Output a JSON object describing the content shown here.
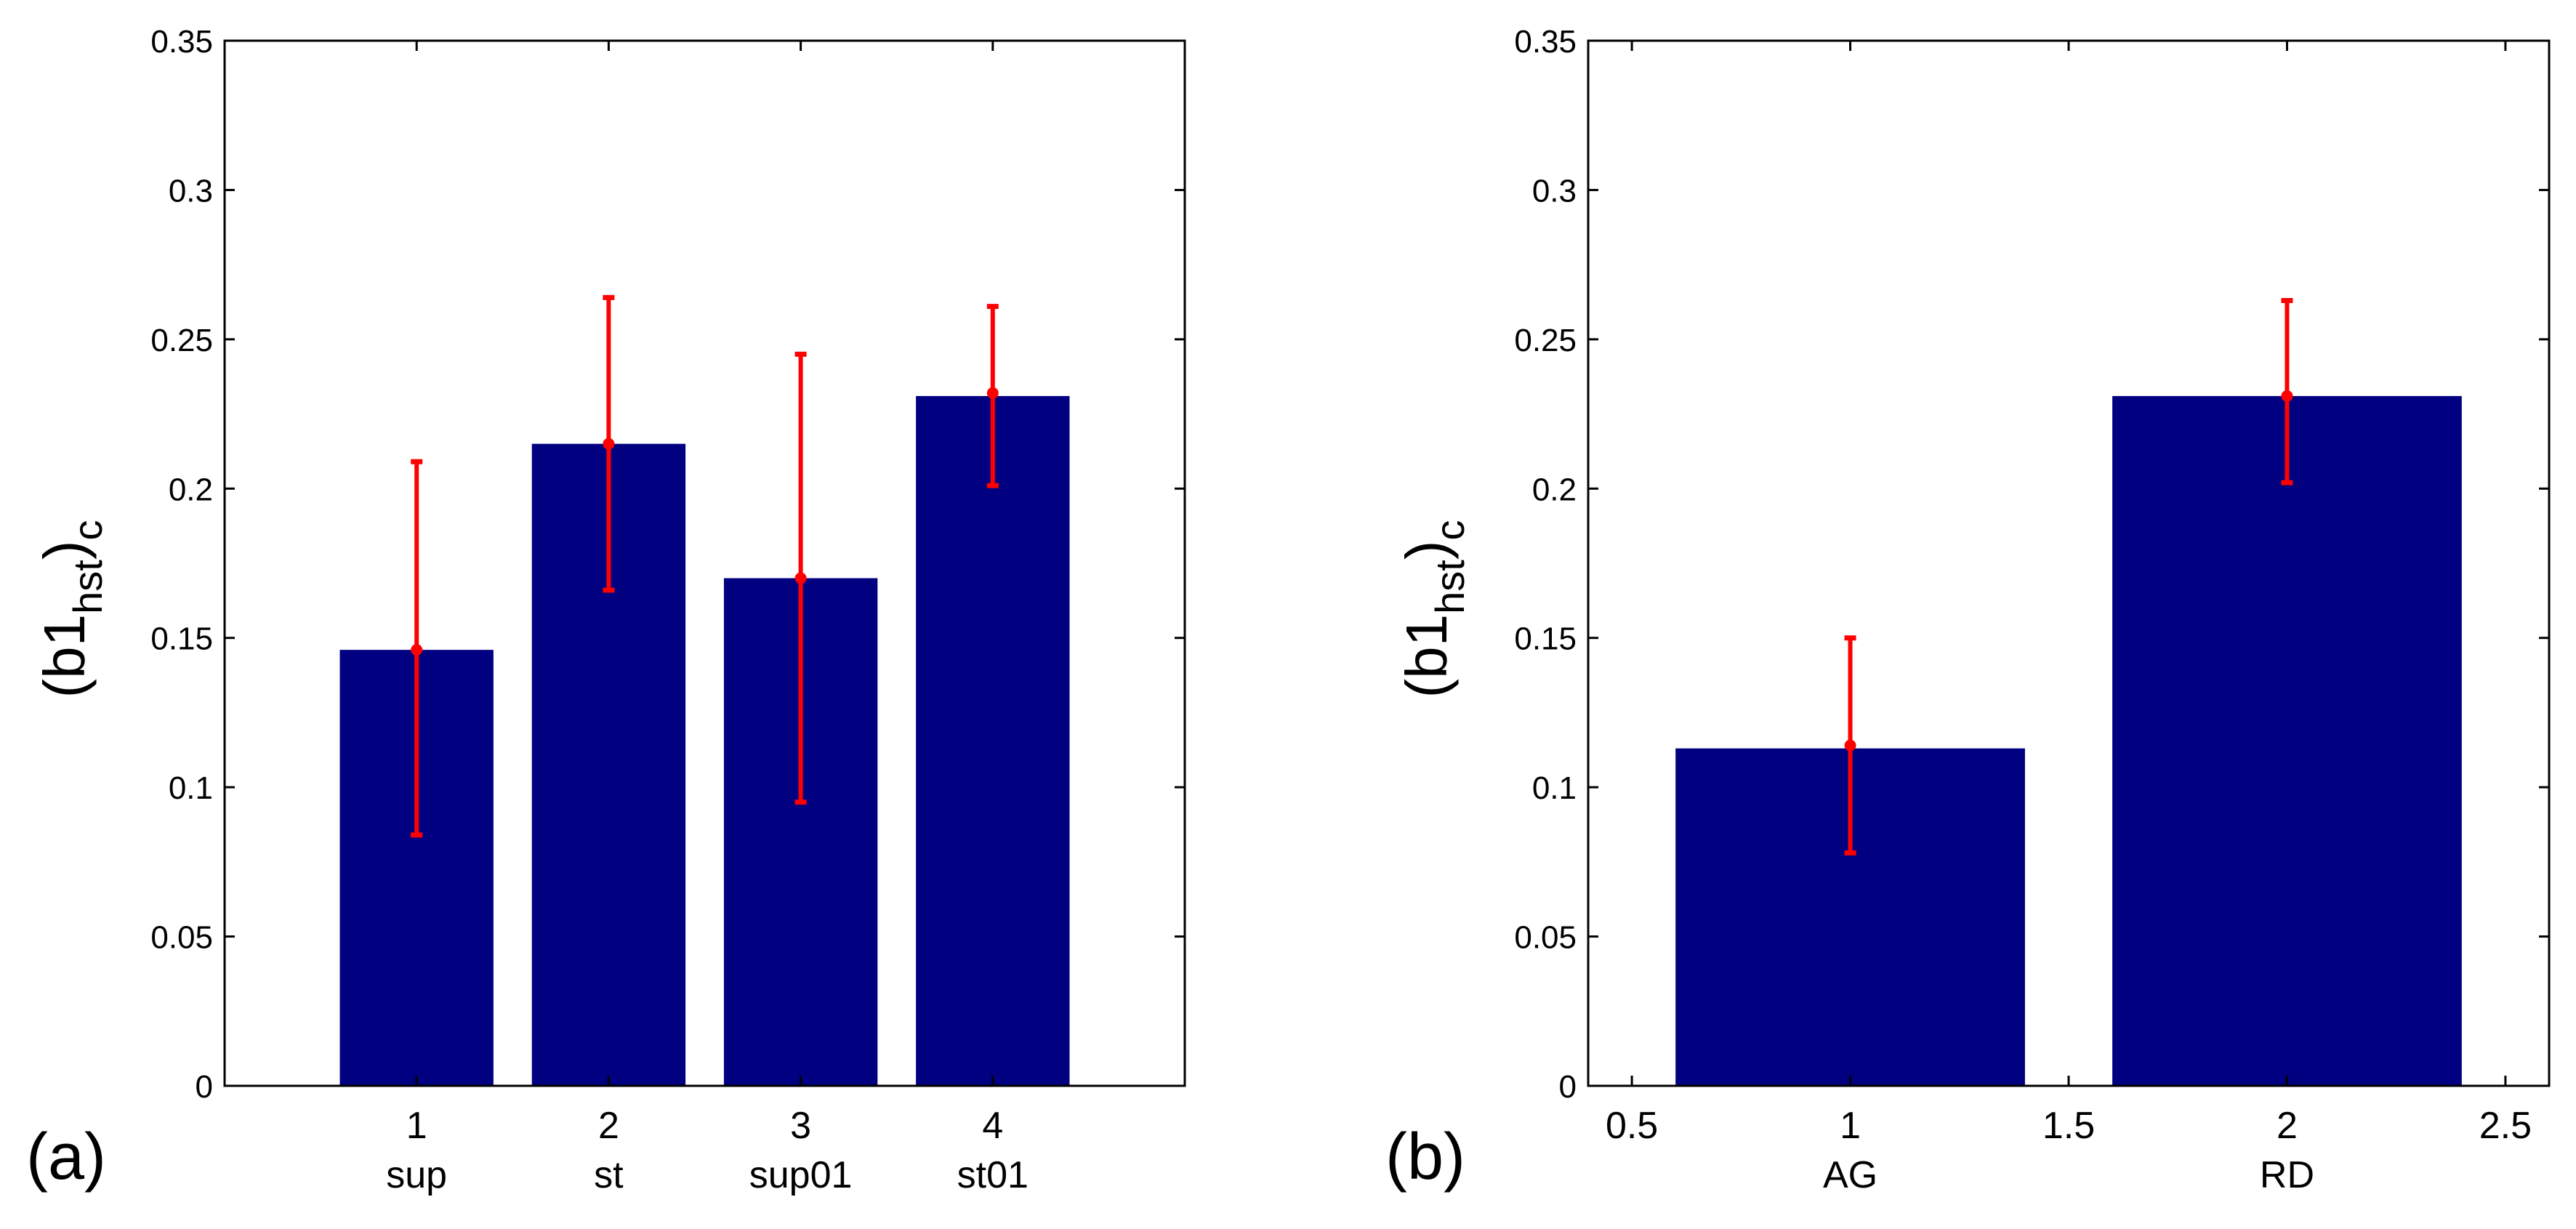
{
  "chart_data": [
    {
      "type": "bar",
      "panel_label": "(a)",
      "ylabel": {
        "main": "(b1",
        "sub": "hst",
        "close": ")",
        "sub2": "c"
      },
      "ylim": [
        0,
        0.35
      ],
      "yticks": [
        "0",
        "0.05",
        "0.1",
        "0.15",
        "0.2",
        "0.25",
        "0.3",
        "0.35"
      ],
      "xlim": [
        0,
        5
      ],
      "categories": [
        {
          "x": 1,
          "tick": "1",
          "name": "sup"
        },
        {
          "x": 2,
          "tick": "2",
          "name": "st"
        },
        {
          "x": 3,
          "tick": "3",
          "name": "sup01"
        },
        {
          "x": 4,
          "tick": "4",
          "name": "st01"
        }
      ],
      "values": [
        0.146,
        0.215,
        0.17,
        0.231
      ],
      "error_center": [
        0.146,
        0.215,
        0.17,
        0.232
      ],
      "error_low": [
        0.084,
        0.166,
        0.095,
        0.201
      ],
      "error_high": [
        0.209,
        0.264,
        0.245,
        0.261
      ],
      "bar_width": 0.8,
      "bar_color": "#000080",
      "error_color": "#ff0000"
    },
    {
      "type": "bar",
      "panel_label": "(b)",
      "ylabel": {
        "main": "(b1",
        "sub": "hst",
        "close": ")",
        "sub2": "c"
      },
      "ylim": [
        0,
        0.35
      ],
      "yticks": [
        "0",
        "0.05",
        "0.1",
        "0.15",
        "0.2",
        "0.25",
        "0.3",
        "0.35"
      ],
      "xlim": [
        0.4,
        2.6
      ],
      "xticks": [
        {
          "x": 0.5,
          "tick": "0.5",
          "name": ""
        },
        {
          "x": 1,
          "tick": "1",
          "name": "AG"
        },
        {
          "x": 1.5,
          "tick": "1.5",
          "name": ""
        },
        {
          "x": 2,
          "tick": "2",
          "name": "RD"
        },
        {
          "x": 2.5,
          "tick": "2.5",
          "name": ""
        }
      ],
      "categories": [
        {
          "x": 1,
          "name": "AG"
        },
        {
          "x": 2,
          "name": "RD"
        }
      ],
      "values": [
        0.113,
        0.231
      ],
      "error_center": [
        0.114,
        0.231
      ],
      "error_low": [
        0.078,
        0.202
      ],
      "error_high": [
        0.15,
        0.263
      ],
      "bar_width": 0.8,
      "bar_color": "#000080",
      "error_color": "#ff0000"
    }
  ]
}
